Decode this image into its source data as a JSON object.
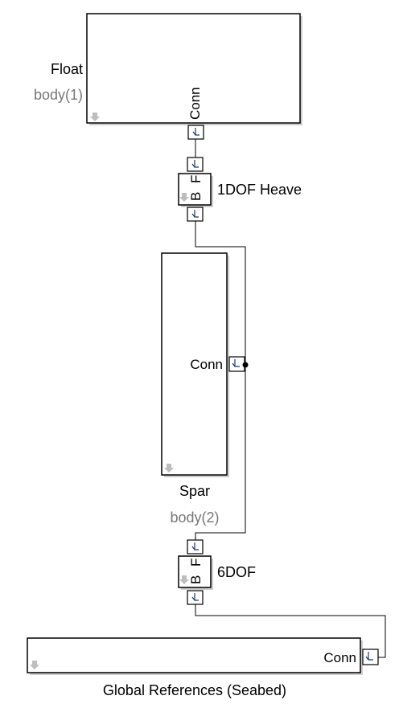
{
  "blocks": {
    "float": {
      "name": "Float",
      "param": "body(1)",
      "port_label": "Conn"
    },
    "heave_joint": {
      "name": "1DOF Heave",
      "port_base": "B",
      "port_follower": "F"
    },
    "spar": {
      "name": "Spar",
      "param": "body(2)",
      "port_label": "Conn"
    },
    "sixdof_joint": {
      "name": "6DOF",
      "port_base": "B",
      "port_follower": "F"
    },
    "global_refs": {
      "name": "Global References (Seabed)",
      "port_label": "Conn"
    }
  }
}
